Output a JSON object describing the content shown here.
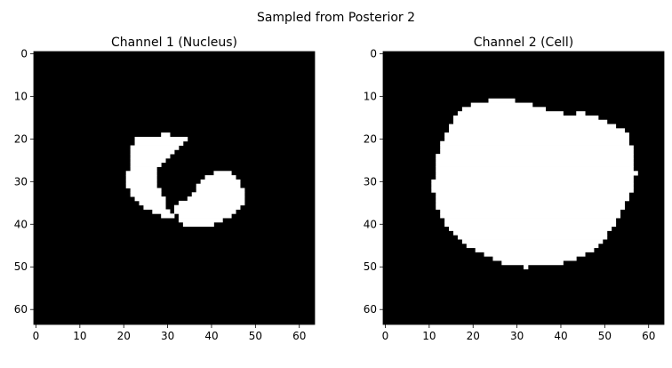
{
  "suptitle": "Sampled from Posterior 2",
  "chart_data": [
    {
      "type": "heatmap",
      "title": "Channel 1 (Nucleus)",
      "xlabel": "",
      "ylabel": "",
      "grid_size": 64,
      "xlim": [
        -0.5,
        63.5
      ],
      "ylim": [
        63.5,
        -0.5
      ],
      "xticks": [
        0,
        10,
        20,
        30,
        40,
        50,
        60
      ],
      "yticks": [
        0,
        10,
        20,
        30,
        40,
        50,
        60
      ],
      "colormap": [
        "#000000",
        "#ffffff"
      ],
      "mask_rows": [
        {
          "y": 19,
          "spans": [
            [
              29,
              30
            ]
          ]
        },
        {
          "y": 20,
          "spans": [
            [
              23,
              34
            ]
          ]
        },
        {
          "y": 21,
          "spans": [
            [
              23,
              33
            ]
          ]
        },
        {
          "y": 22,
          "spans": [
            [
              22,
              32
            ]
          ]
        },
        {
          "y": 23,
          "spans": [
            [
              22,
              31
            ]
          ]
        },
        {
          "y": 24,
          "spans": [
            [
              22,
              30
            ]
          ]
        },
        {
          "y": 25,
          "spans": [
            [
              22,
              29
            ]
          ]
        },
        {
          "y": 26,
          "spans": [
            [
              22,
              28
            ]
          ]
        },
        {
          "y": 27,
          "spans": [
            [
              22,
              27
            ]
          ]
        },
        {
          "y": 28,
          "spans": [
            [
              21,
              27
            ],
            [
              41,
              44
            ]
          ]
        },
        {
          "y": 29,
          "spans": [
            [
              21,
              27
            ],
            [
              39,
              45
            ]
          ]
        },
        {
          "y": 30,
          "spans": [
            [
              21,
              27
            ],
            [
              38,
              46
            ]
          ]
        },
        {
          "y": 31,
          "spans": [
            [
              21,
              27
            ],
            [
              37,
              46
            ]
          ]
        },
        {
          "y": 32,
          "spans": [
            [
              22,
              28
            ],
            [
              37,
              47
            ]
          ]
        },
        {
          "y": 33,
          "spans": [
            [
              22,
              28
            ],
            [
              36,
              47
            ]
          ]
        },
        {
          "y": 34,
          "spans": [
            [
              23,
              29
            ],
            [
              35,
              47
            ]
          ]
        },
        {
          "y": 35,
          "spans": [
            [
              24,
              29
            ],
            [
              33,
              47
            ]
          ]
        },
        {
          "y": 36,
          "spans": [
            [
              25,
              29
            ],
            [
              32,
              46
            ]
          ]
        },
        {
          "y": 37,
          "spans": [
            [
              27,
              30
            ],
            [
              32,
              45
            ]
          ]
        },
        {
          "y": 38,
          "spans": [
            [
              29,
              31
            ],
            [
              33,
              44
            ]
          ]
        },
        {
          "y": 39,
          "spans": [
            [
              33,
              42
            ]
          ]
        },
        {
          "y": 40,
          "spans": [
            [
              34,
              40
            ]
          ]
        }
      ]
    },
    {
      "type": "heatmap",
      "title": "Channel 2 (Cell)",
      "xlabel": "",
      "ylabel": "",
      "grid_size": 64,
      "xlim": [
        -0.5,
        63.5
      ],
      "ylim": [
        63.5,
        -0.5
      ],
      "xticks": [
        0,
        10,
        20,
        30,
        40,
        50,
        60
      ],
      "yticks": [
        0,
        10,
        20,
        30,
        40,
        50,
        60
      ],
      "colormap": [
        "#000000",
        "#ffffff"
      ],
      "mask_rows": [
        {
          "y": 11,
          "spans": [
            [
              24,
              29
            ]
          ]
        },
        {
          "y": 12,
          "spans": [
            [
              20,
              33
            ]
          ]
        },
        {
          "y": 13,
          "spans": [
            [
              18,
              36
            ]
          ]
        },
        {
          "y": 14,
          "spans": [
            [
              17,
              40
            ],
            [
              44,
              45
            ]
          ]
        },
        {
          "y": 15,
          "spans": [
            [
              16,
              48
            ]
          ]
        },
        {
          "y": 16,
          "spans": [
            [
              16,
              50
            ]
          ]
        },
        {
          "y": 17,
          "spans": [
            [
              15,
              52
            ]
          ]
        },
        {
          "y": 18,
          "spans": [
            [
              15,
              54
            ]
          ]
        },
        {
          "y": 19,
          "spans": [
            [
              14,
              55
            ]
          ]
        },
        {
          "y": 20,
          "spans": [
            [
              14,
              55
            ]
          ]
        },
        {
          "y": 21,
          "spans": [
            [
              13,
              55
            ]
          ]
        },
        {
          "y": 22,
          "spans": [
            [
              13,
              56
            ]
          ]
        },
        {
          "y": 23,
          "spans": [
            [
              13,
              56
            ]
          ]
        },
        {
          "y": 24,
          "spans": [
            [
              12,
              56
            ]
          ]
        },
        {
          "y": 25,
          "spans": [
            [
              12,
              56
            ]
          ]
        },
        {
          "y": 26,
          "spans": [
            [
              12,
              56
            ]
          ]
        },
        {
          "y": 27,
          "spans": [
            [
              12,
              56
            ]
          ]
        },
        {
          "y": 28,
          "spans": [
            [
              12,
              57
            ]
          ]
        },
        {
          "y": 29,
          "spans": [
            [
              12,
              56
            ]
          ]
        },
        {
          "y": 30,
          "spans": [
            [
              11,
              56
            ]
          ]
        },
        {
          "y": 31,
          "spans": [
            [
              11,
              56
            ]
          ]
        },
        {
          "y": 32,
          "spans": [
            [
              11,
              56
            ]
          ]
        },
        {
          "y": 33,
          "spans": [
            [
              12,
              55
            ]
          ]
        },
        {
          "y": 34,
          "spans": [
            [
              12,
              55
            ]
          ]
        },
        {
          "y": 35,
          "spans": [
            [
              12,
              54
            ]
          ]
        },
        {
          "y": 36,
          "spans": [
            [
              12,
              54
            ]
          ]
        },
        {
          "y": 37,
          "spans": [
            [
              13,
              53
            ]
          ]
        },
        {
          "y": 38,
          "spans": [
            [
              13,
              53
            ]
          ]
        },
        {
          "y": 39,
          "spans": [
            [
              14,
              52
            ]
          ]
        },
        {
          "y": 40,
          "spans": [
            [
              14,
              52
            ]
          ]
        },
        {
          "y": 41,
          "spans": [
            [
              15,
              51
            ]
          ]
        },
        {
          "y": 42,
          "spans": [
            [
              16,
              50
            ]
          ]
        },
        {
          "y": 43,
          "spans": [
            [
              17,
              50
            ]
          ]
        },
        {
          "y": 44,
          "spans": [
            [
              18,
              49
            ]
          ]
        },
        {
          "y": 45,
          "spans": [
            [
              19,
              48
            ]
          ]
        },
        {
          "y": 46,
          "spans": [
            [
              21,
              47
            ]
          ]
        },
        {
          "y": 47,
          "spans": [
            [
              23,
              45
            ]
          ]
        },
        {
          "y": 48,
          "spans": [
            [
              25,
              43
            ]
          ]
        },
        {
          "y": 49,
          "spans": [
            [
              27,
              40
            ]
          ]
        },
        {
          "y": 50,
          "spans": [
            [
              32,
              32
            ]
          ]
        }
      ]
    }
  ]
}
